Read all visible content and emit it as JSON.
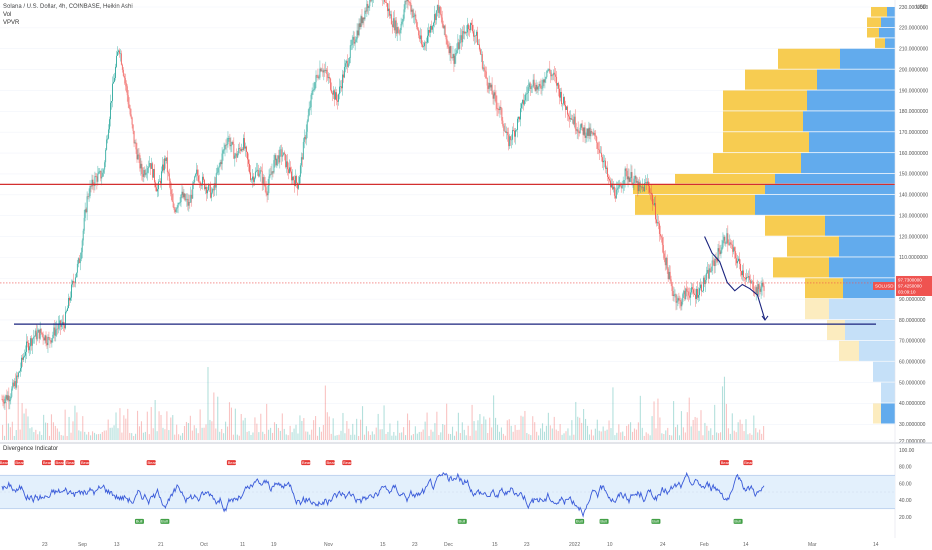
{
  "header": {
    "title": "Solana / U.S. Dollar, 4h, COINBASE, Heikin Ashi",
    "vol_label": "Vol",
    "vpvr_label": "VPVR"
  },
  "oscillator": {
    "title": "Divergence Indicator"
  },
  "colors": {
    "up": "#26a69a",
    "down": "#ef5350",
    "vp_up": "#5aa6ec",
    "vp_down": "#f7c948",
    "resistance": "#d32f2f",
    "support": "#1a237e",
    "osc_line": "#3a5bd9",
    "bear_badge": "#e53935",
    "bull_badge": "#43a047"
  },
  "chart_data": {
    "type": "candlestick",
    "price_axis": {
      "unit": "USD",
      "ticks": [
        "230.0000000",
        "220.0000000",
        "210.0000000",
        "200.0000000",
        "190.0000000",
        "180.0000000",
        "170.0000000",
        "160.0000000",
        "150.0000000",
        "140.0000000",
        "130.0000000",
        "120.0000000",
        "110.0000000",
        "100.0000000",
        "90.0000000",
        "80.0000000",
        "70.0000000",
        "60.0000000",
        "50.0000000",
        "40.0000000",
        "30.0000000",
        "22.0000000"
      ],
      "top_label": "USD"
    },
    "x_axis": {
      "ticks": [
        "23",
        "Sep",
        "13",
        "21",
        "Oct",
        "11",
        "19",
        "Nov",
        "15",
        "23",
        "Dec",
        "15",
        "23",
        "2022",
        "10",
        "24",
        "Feb",
        "14",
        "Mar",
        "14"
      ]
    },
    "price_path": [
      [
        0,
        42
      ],
      [
        1,
        44
      ],
      [
        2,
        52
      ],
      [
        3,
        66
      ],
      [
        4,
        72
      ],
      [
        5,
        74
      ],
      [
        6,
        70
      ],
      [
        7,
        76
      ],
      [
        8,
        78
      ],
      [
        9,
        96
      ],
      [
        10,
        110
      ],
      [
        11,
        140
      ],
      [
        12,
        148
      ],
      [
        13,
        150
      ],
      [
        14,
        185
      ],
      [
        15,
        212
      ],
      [
        16,
        190
      ],
      [
        17,
        165
      ],
      [
        18,
        150
      ],
      [
        19,
        156
      ],
      [
        20,
        142
      ],
      [
        21,
        158
      ],
      [
        22,
        132
      ],
      [
        23,
        140
      ],
      [
        24,
        135
      ],
      [
        25,
        150
      ],
      [
        26,
        145
      ],
      [
        27,
        140
      ],
      [
        28,
        155
      ],
      [
        29,
        168
      ],
      [
        30,
        158
      ],
      [
        31,
        165
      ],
      [
        32,
        148
      ],
      [
        33,
        152
      ],
      [
        34,
        142
      ],
      [
        35,
        156
      ],
      [
        36,
        160
      ],
      [
        37,
        150
      ],
      [
        38,
        145
      ],
      [
        39,
        170
      ],
      [
        40,
        192
      ],
      [
        41,
        202
      ],
      [
        42,
        195
      ],
      [
        43,
        185
      ],
      [
        44,
        200
      ],
      [
        45,
        212
      ],
      [
        46,
        222
      ],
      [
        47,
        232
      ],
      [
        48,
        240
      ],
      [
        49,
        235
      ],
      [
        50,
        224
      ],
      [
        51,
        218
      ],
      [
        52,
        235
      ],
      [
        53,
        225
      ],
      [
        54,
        210
      ],
      [
        55,
        220
      ],
      [
        56,
        230
      ],
      [
        57,
        215
      ],
      [
        58,
        205
      ],
      [
        59,
        215
      ],
      [
        60,
        222
      ],
      [
        61,
        215
      ],
      [
        62,
        198
      ],
      [
        63,
        188
      ],
      [
        64,
        180
      ],
      [
        65,
        165
      ],
      [
        66,
        172
      ],
      [
        67,
        185
      ],
      [
        68,
        195
      ],
      [
        69,
        190
      ],
      [
        70,
        200
      ],
      [
        71,
        196
      ],
      [
        72,
        185
      ],
      [
        73,
        178
      ],
      [
        74,
        172
      ],
      [
        75,
        170
      ],
      [
        76,
        168
      ],
      [
        77,
        160
      ],
      [
        78,
        145
      ],
      [
        79,
        140
      ],
      [
        80,
        150
      ],
      [
        81,
        148
      ],
      [
        82,
        142
      ],
      [
        83,
        146
      ],
      [
        84,
        130
      ],
      [
        85,
        112
      ],
      [
        86,
        95
      ],
      [
        87,
        88
      ],
      [
        88,
        94
      ],
      [
        89,
        92
      ],
      [
        90,
        97
      ],
      [
        91,
        104
      ],
      [
        92,
        112
      ],
      [
        93,
        120
      ],
      [
        94,
        112
      ],
      [
        95,
        104
      ],
      [
        96,
        98
      ],
      [
        97,
        94
      ],
      [
        98,
        97
      ]
    ],
    "last_price": "97.7300000",
    "price_tag": [
      "97.7300000",
      "97.4250000",
      "03:09:10"
    ],
    "symbol_tag": "SOLUSD",
    "lines": [
      {
        "name": "resistance",
        "price": 145
      },
      {
        "name": "support",
        "price": 78
      }
    ],
    "projection": [
      [
        93,
        120
      ],
      [
        94,
        112
      ],
      [
        95,
        108
      ],
      [
        96,
        98
      ],
      [
        97,
        94
      ],
      [
        98,
        97
      ],
      [
        99,
        95
      ],
      [
        100,
        92
      ],
      [
        101,
        80
      ]
    ],
    "volume_profile": [
      {
        "price": 230,
        "up": 16,
        "down": 8
      },
      {
        "price": 225,
        "up": 14,
        "down": 14
      },
      {
        "price": 220,
        "up": 12,
        "down": 16
      },
      {
        "price": 215,
        "up": 10,
        "down": 10
      },
      {
        "price": 210,
        "up": 62,
        "down": 55
      },
      {
        "price": 200,
        "up": 72,
        "down": 78
      },
      {
        "price": 190,
        "up": 84,
        "down": 88
      },
      {
        "price": 180,
        "up": 80,
        "down": 92
      },
      {
        "price": 170,
        "up": 86,
        "down": 86
      },
      {
        "price": 160,
        "up": 88,
        "down": 94
      },
      {
        "price": 150,
        "up": 100,
        "down": 120
      },
      {
        "price": 145,
        "up": 132,
        "down": 130
      },
      {
        "price": 140,
        "up": 120,
        "down": 140
      },
      {
        "price": 130,
        "up": 60,
        "down": 70
      },
      {
        "price": 120,
        "up": 52,
        "down": 56
      },
      {
        "price": 110,
        "up": 56,
        "down": 66
      },
      {
        "price": 100,
        "up": 38,
        "down": 52
      },
      {
        "price": 90,
        "up": 24,
        "down": 66
      },
      {
        "price": 80,
        "up": 18,
        "down": 50
      },
      {
        "price": 70,
        "up": 20,
        "down": 36
      },
      {
        "price": 60,
        "up": 0,
        "down": 22
      },
      {
        "price": 50,
        "up": 0,
        "down": 14
      },
      {
        "price": 40,
        "up": 8,
        "down": 14
      }
    ],
    "oscillator": {
      "axis_ticks": [
        "100.00",
        "80.00",
        "60.00",
        "40.00",
        "20.00"
      ],
      "band": [
        30,
        70
      ],
      "signals": [
        {
          "label": "Bear",
          "i": 1
        },
        {
          "label": "Bear",
          "i": 17
        },
        {
          "label": "Bear",
          "i": 45
        },
        {
          "label": "Bear",
          "i": 58
        },
        {
          "label": "Bear",
          "i": 69
        },
        {
          "label": "Bear",
          "i": 84
        },
        {
          "label": "Bear",
          "i": 152
        },
        {
          "label": "Bear",
          "i": 234
        },
        {
          "label": "Bear",
          "i": 310
        },
        {
          "label": "Bear",
          "i": 335
        },
        {
          "label": "Bear",
          "i": 352
        },
        {
          "label": "Bear",
          "i": 738
        },
        {
          "label": "Bear",
          "i": 762
        },
        {
          "label": "Bull",
          "i": 140
        },
        {
          "label": "Bull",
          "i": 166
        },
        {
          "label": "Bull",
          "i": 470
        },
        {
          "label": "Bull",
          "i": 590
        },
        {
          "label": "Bull",
          "i": 615
        },
        {
          "label": "Bull",
          "i": 668
        },
        {
          "label": "Bull",
          "i": 752
        }
      ]
    }
  }
}
